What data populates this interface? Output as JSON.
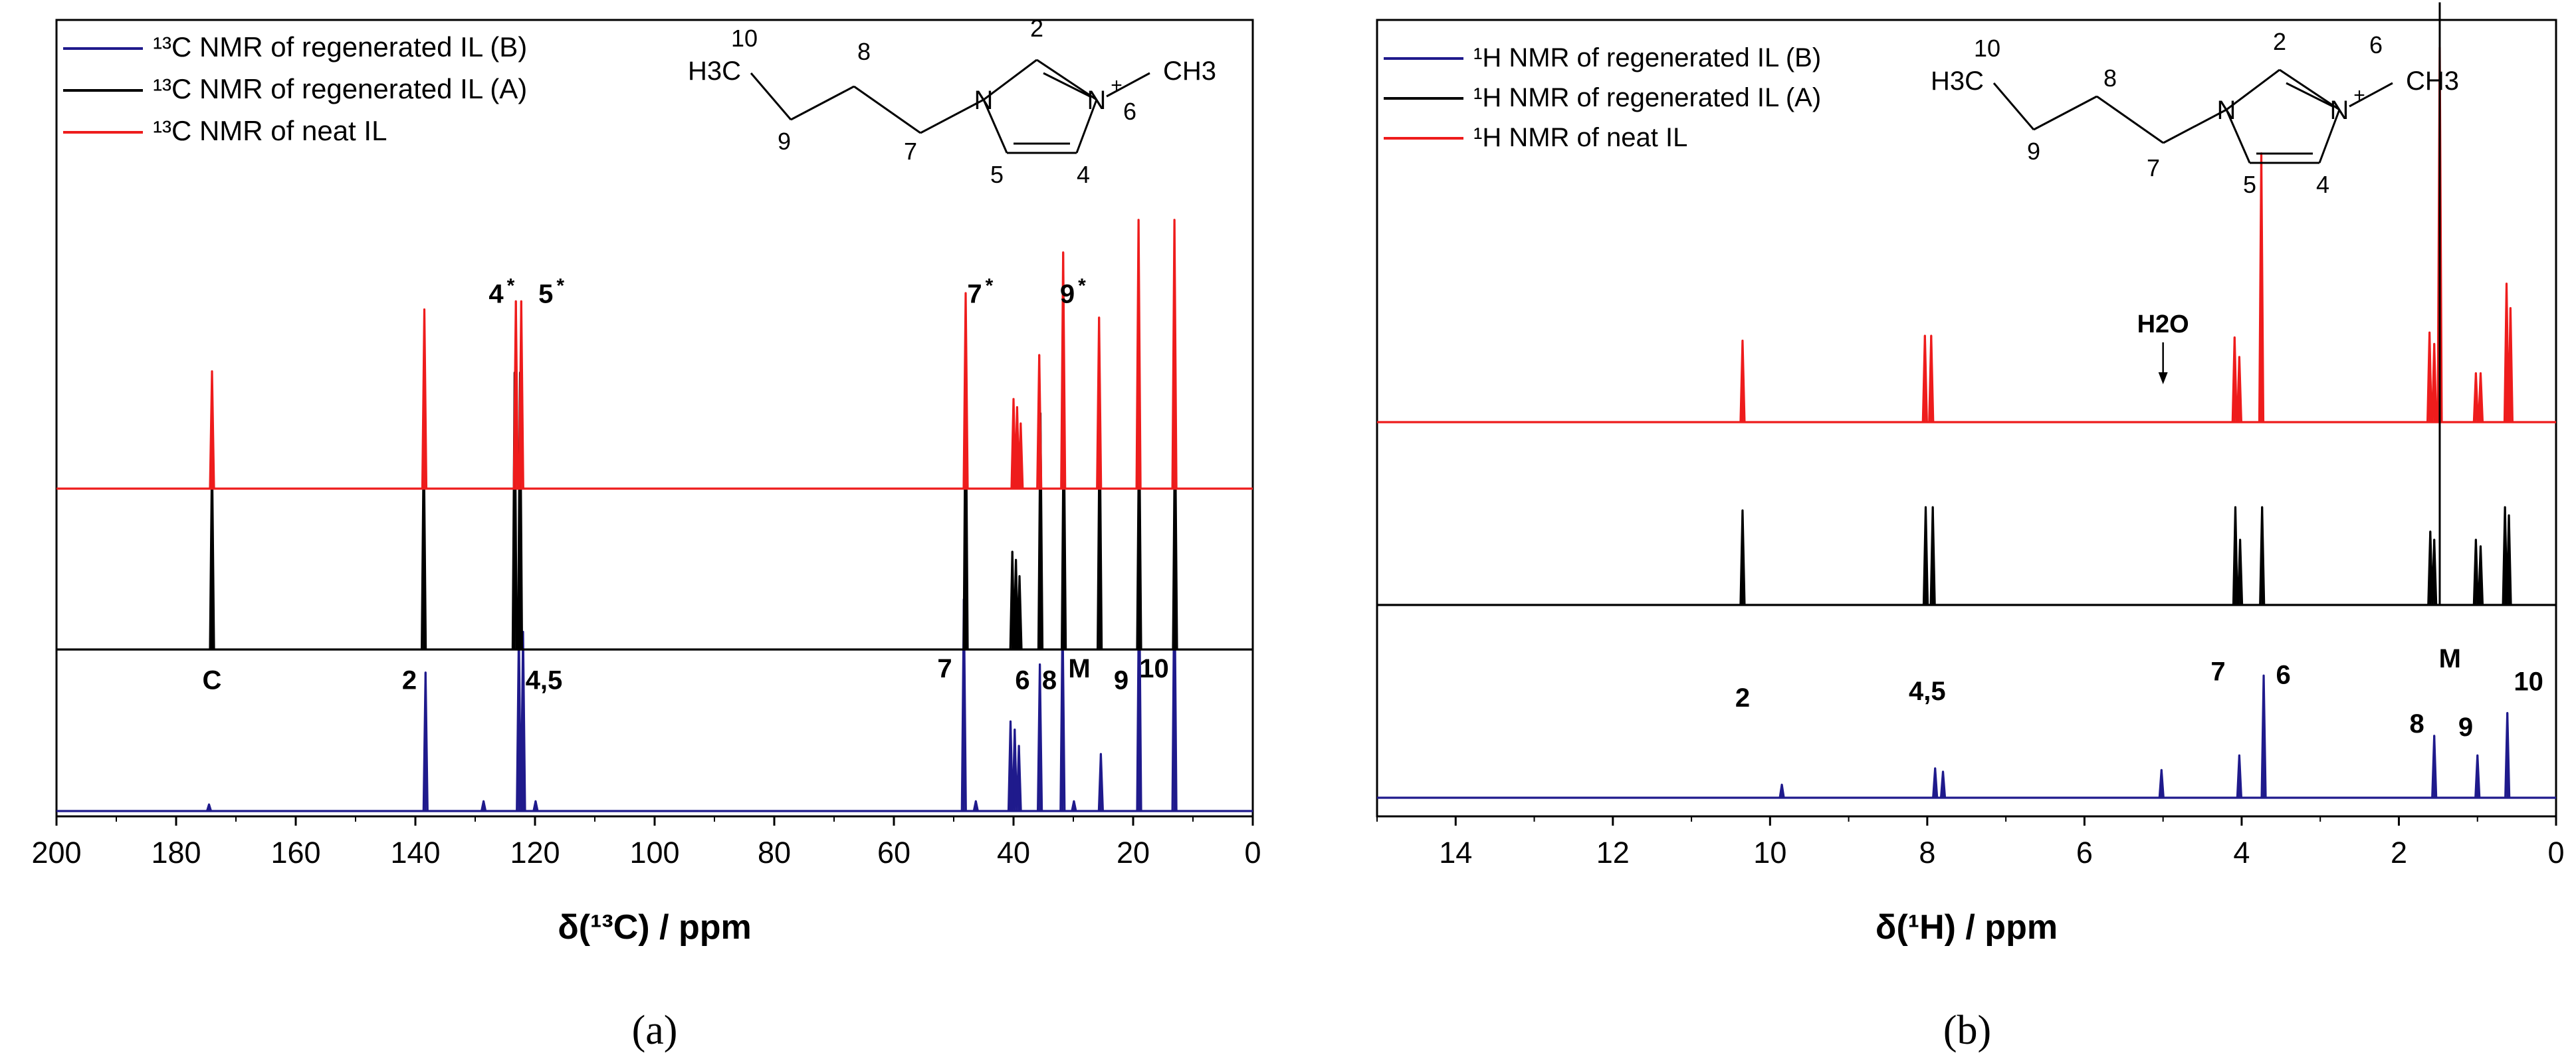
{
  "chart_data": [
    {
      "type": "line",
      "panel_label": "(a)",
      "xlabel": "δ(¹³C) / ppm",
      "xlim": [
        200,
        0
      ],
      "x_reversed": true,
      "xticks": [
        200,
        180,
        160,
        140,
        120,
        100,
        80,
        60,
        40,
        20,
        0
      ],
      "yticks_shown": false,
      "legend_position": "top-left",
      "series": [
        {
          "name": "¹³C NMR of regenerated IL (B)",
          "color": "#1f1a8c",
          "baseline": 2.0,
          "peaks": [
            [
              174.5,
              0.04
            ],
            [
              138.3,
              0.85
            ],
            [
              128.6,
              0.06
            ],
            [
              122.7,
              1.1
            ],
            [
              122.0,
              1.1
            ],
            [
              119.9,
              0.06
            ],
            [
              48.3,
              1.3
            ],
            [
              46.3,
              0.06
            ],
            [
              40.5,
              0.55
            ],
            [
              39.8,
              0.5
            ],
            [
              39.1,
              0.4
            ],
            [
              35.6,
              0.9
            ],
            [
              31.8,
              1.2
            ],
            [
              29.9,
              0.06
            ],
            [
              25.4,
              0.35
            ],
            [
              19.0,
              1.5
            ],
            [
              13.1,
              1.5
            ]
          ]
        },
        {
          "name": "¹³C NMR of regenerated IL (A)",
          "color": "#000000",
          "baseline": 1.0,
          "peaks": [
            [
              174.0,
              1.2
            ],
            [
              138.6,
              1.3
            ],
            [
              123.4,
              1.7
            ],
            [
              122.5,
              1.7
            ],
            [
              48.0,
              1.7
            ],
            [
              40.2,
              0.6
            ],
            [
              39.6,
              0.55
            ],
            [
              39.0,
              0.45
            ],
            [
              35.5,
              1.45
            ],
            [
              31.6,
              1.45
            ],
            [
              25.6,
              1.45
            ],
            [
              19.0,
              1.45
            ],
            [
              13.0,
              1.45
            ]
          ]
        },
        {
          "name": "¹³C NMR of neat IL",
          "color": "#ee1c1c",
          "baseline": 0.0,
          "peaks": [
            [
              174.0,
              0.72
            ],
            [
              138.5,
              1.1
            ],
            [
              123.2,
              1.15
            ],
            [
              122.3,
              1.15
            ],
            [
              48.0,
              1.2
            ],
            [
              40.0,
              0.55
            ],
            [
              39.4,
              0.5
            ],
            [
              38.8,
              0.4
            ],
            [
              35.7,
              0.82
            ],
            [
              31.7,
              1.45
            ],
            [
              25.7,
              1.05
            ],
            [
              19.1,
              1.65
            ],
            [
              13.1,
              1.65
            ]
          ]
        }
      ],
      "peak_labels": [
        {
          "text": "C",
          "x": 174,
          "y": 0.75
        },
        {
          "text": "2",
          "x": 141,
          "y": 0.75
        },
        {
          "text": "4,5",
          "x": 118.5,
          "y": 0.75
        },
        {
          "text": "7",
          "x": 51.5,
          "y": 0.82
        },
        {
          "text": "6",
          "x": 38.5,
          "y": 0.75
        },
        {
          "text": "8",
          "x": 34,
          "y": 0.75
        },
        {
          "text": "M",
          "x": 29,
          "y": 0.82
        },
        {
          "text": "9",
          "x": 22,
          "y": 0.75
        },
        {
          "text": "10",
          "x": 16.5,
          "y": 0.82
        },
        {
          "text": "4",
          "sup": "*",
          "x": 126.5,
          "y": 2.12
        },
        {
          "text": "5",
          "sup": "*",
          "x": 118.2,
          "y": 2.12
        },
        {
          "text": "7",
          "sup": "*",
          "x": 46.5,
          "y": 2.12
        },
        {
          "text": "9",
          "sup": "*",
          "x": 31,
          "y": 2.12
        }
      ],
      "structure_labels": [
        "10",
        "8",
        "2",
        "9",
        "7",
        "5",
        "4",
        "6"
      ],
      "structure_text": {
        "left_group": "H3C",
        "n1": "N",
        "n3": "N",
        "charge": "+",
        "right_group": "CH3"
      }
    },
    {
      "type": "line",
      "panel_label": "(b)",
      "xlabel": "δ(¹H) / ppm",
      "xlim": [
        15,
        0
      ],
      "x_reversed": true,
      "xticks": [
        14,
        12,
        10,
        8,
        6,
        4,
        2,
        0
      ],
      "yticks_shown": false,
      "legend_position": "top-left",
      "series": [
        {
          "name": "¹H NMR of regenerated IL (B)",
          "color": "#1f1a8c",
          "baseline": 2.0,
          "peaks": [
            [
              9.85,
              0.08
            ],
            [
              7.9,
              0.18
            ],
            [
              7.8,
              0.16
            ],
            [
              5.02,
              0.17
            ],
            [
              4.03,
              0.26
            ],
            [
              3.72,
              0.75
            ],
            [
              1.55,
              0.38
            ],
            [
              1.0,
              0.26
            ],
            [
              0.62,
              0.52
            ]
          ]
        },
        {
          "name": "¹H NMR of regenerated IL (A)",
          "color": "#000000",
          "baseline": 1.0,
          "peaks": [
            [
              10.35,
              0.58
            ],
            [
              8.02,
              0.6
            ],
            [
              7.93,
              0.6
            ],
            [
              4.08,
              0.6
            ],
            [
              4.02,
              0.4
            ],
            [
              3.74,
              0.6
            ],
            [
              1.6,
              0.45
            ],
            [
              1.55,
              0.4
            ],
            [
              1.02,
              0.4
            ],
            [
              0.96,
              0.36
            ],
            [
              0.65,
              0.6
            ],
            [
              0.6,
              0.55
            ]
          ]
        },
        {
          "name": "¹H NMR of neat IL",
          "color": "#ee1c1c",
          "baseline": 0.0,
          "peaks": [
            [
              10.35,
              0.5
            ],
            [
              8.03,
              0.53
            ],
            [
              7.95,
              0.53
            ],
            [
              4.09,
              0.52
            ],
            [
              4.03,
              0.4
            ],
            [
              3.75,
              1.65
            ],
            [
              1.61,
              0.55
            ],
            [
              1.55,
              0.48
            ],
            [
              1.48,
              2.3
            ],
            [
              1.02,
              0.3
            ],
            [
              0.96,
              0.3
            ],
            [
              0.63,
              0.85
            ],
            [
              0.58,
              0.7
            ]
          ]
        }
      ],
      "extra_peaks": [
        {
          "color": "#000000",
          "x": 1.48,
          "from": 0.9,
          "to": 3.7
        }
      ],
      "peak_labels": [
        {
          "text": "2",
          "x": 10.35,
          "y": 0.56
        },
        {
          "text": "4,5",
          "x": 8.0,
          "y": 0.6
        },
        {
          "text": "7",
          "x": 4.3,
          "y": 0.72
        },
        {
          "text": "6",
          "x": 3.47,
          "y": 0.7
        },
        {
          "text": "M",
          "x": 1.35,
          "y": 0.8
        },
        {
          "text": "8",
          "x": 1.77,
          "y": 0.4
        },
        {
          "text": "9",
          "x": 1.15,
          "y": 0.38
        },
        {
          "text": "10",
          "x": 0.35,
          "y": 0.66
        }
      ],
      "water_label": {
        "text": "H2O",
        "x": 5.0
      },
      "structure_labels": [
        "10",
        "8",
        "2",
        "6",
        "9",
        "7",
        "5",
        "4"
      ],
      "structure_text": {
        "left_group": "H3C",
        "n1": "N",
        "n3": "N",
        "charge": "+",
        "right_group": "CH3"
      }
    }
  ]
}
